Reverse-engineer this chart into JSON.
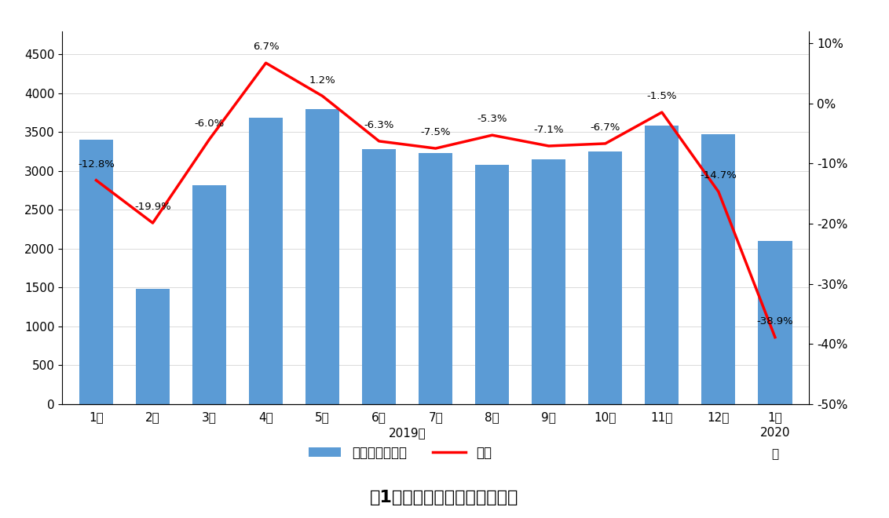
{
  "categories": [
    "1月",
    "2月",
    "3月",
    "4月",
    "5月",
    "6月",
    "7月",
    "8月",
    "9月",
    "10月",
    "11月",
    "12月",
    "1月"
  ],
  "shipment": [
    3400,
    1480,
    2820,
    3680,
    3800,
    3280,
    3230,
    3080,
    3150,
    3250,
    3580,
    3470,
    2100
  ],
  "yoy": [
    -12.8,
    -19.9,
    -6.0,
    6.7,
    1.2,
    -6.3,
    -7.5,
    -5.3,
    -7.1,
    -6.7,
    -1.5,
    -14.7,
    -38.9
  ],
  "yoy_labels": [
    "-12.8%",
    "-19.9%",
    "-6.0%",
    "6.7%",
    "1.2%",
    "-6.3%",
    "-7.5%",
    "-5.3%",
    "-7.1%",
    "-6.7%",
    "-1.5%",
    "-14.7%",
    "-38.9%"
  ],
  "bar_color": "#5B9BD5",
  "line_color": "#FF0000",
  "left_ylim": [
    0,
    4800
  ],
  "left_yticks": [
    0,
    500,
    1000,
    1500,
    2000,
    2500,
    3000,
    3500,
    4000,
    4500
  ],
  "right_ylim": [
    -50,
    12
  ],
  "right_yticks": [
    -50,
    -40,
    -30,
    -20,
    -10,
    0,
    10
  ],
  "right_yticklabels": [
    "-50%",
    "-40%",
    "-30%",
    "-20%",
    "-10%",
    "0%",
    "10%"
  ],
  "legend_bar_label": "出货量（万部）",
  "legend_line_label": "同比",
  "title": "图1：国内手机市场出货量情况",
  "bg_color": "#FFFFFF"
}
